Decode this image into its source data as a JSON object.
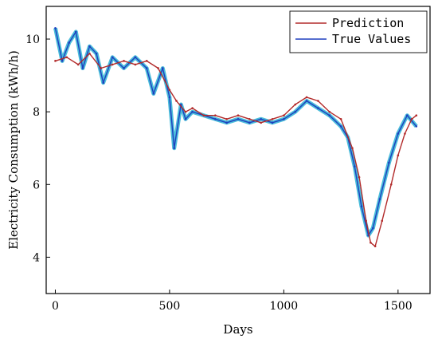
{
  "chart_data": {
    "type": "line",
    "xlabel": "Days",
    "ylabel": "Electricity Consumption (kWh/h)",
    "xlim": [
      -40,
      1640
    ],
    "ylim": [
      3.0,
      10.9
    ],
    "xticks": [
      0,
      500,
      1000,
      1500
    ],
    "yticks": [
      4,
      6,
      8,
      10
    ],
    "x_tick_labels": [
      "0",
      "500",
      "1000",
      "1500"
    ],
    "y_tick_labels": [
      "4",
      "6",
      "8",
      "10"
    ],
    "legend_position": "top-right",
    "grid": false,
    "series": [
      {
        "name": "Prediction",
        "color": "#b22a2a",
        "x": [
          0,
          50,
          100,
          150,
          200,
          250,
          300,
          350,
          400,
          450,
          500,
          530,
          570,
          600,
          650,
          700,
          750,
          800,
          850,
          900,
          950,
          1000,
          1050,
          1100,
          1150,
          1200,
          1250,
          1300,
          1330,
          1360,
          1380,
          1400,
          1430,
          1470,
          1500,
          1530,
          1560,
          1580
        ],
        "y": [
          9.4,
          9.5,
          9.3,
          9.6,
          9.2,
          9.3,
          9.4,
          9.3,
          9.4,
          9.2,
          8.6,
          8.3,
          8.0,
          8.1,
          7.9,
          7.9,
          7.8,
          7.9,
          7.8,
          7.7,
          7.8,
          7.9,
          8.2,
          8.4,
          8.3,
          8.0,
          7.8,
          7.0,
          6.2,
          5.0,
          4.4,
          4.3,
          5.0,
          6.0,
          6.8,
          7.4,
          7.8,
          7.9
        ]
      },
      {
        "name": "True Values",
        "color": "#1f3fbf",
        "fill_color": "#2ab0d4",
        "x": [
          0,
          30,
          60,
          90,
          120,
          150,
          180,
          210,
          250,
          300,
          350,
          400,
          430,
          470,
          500,
          520,
          550,
          570,
          600,
          650,
          700,
          750,
          800,
          850,
          900,
          950,
          1000,
          1050,
          1100,
          1150,
          1200,
          1250,
          1280,
          1310,
          1340,
          1370,
          1390,
          1420,
          1460,
          1500,
          1540,
          1580
        ],
        "y": [
          10.3,
          9.4,
          9.9,
          10.2,
          9.2,
          9.8,
          9.6,
          8.8,
          9.5,
          9.2,
          9.5,
          9.2,
          8.5,
          9.2,
          8.4,
          7.0,
          8.2,
          7.8,
          8.0,
          7.9,
          7.8,
          7.7,
          7.8,
          7.7,
          7.8,
          7.7,
          7.8,
          8.0,
          8.3,
          8.1,
          7.9,
          7.6,
          7.3,
          6.5,
          5.4,
          4.6,
          4.8,
          5.6,
          6.6,
          7.4,
          7.9,
          7.6
        ]
      }
    ]
  }
}
